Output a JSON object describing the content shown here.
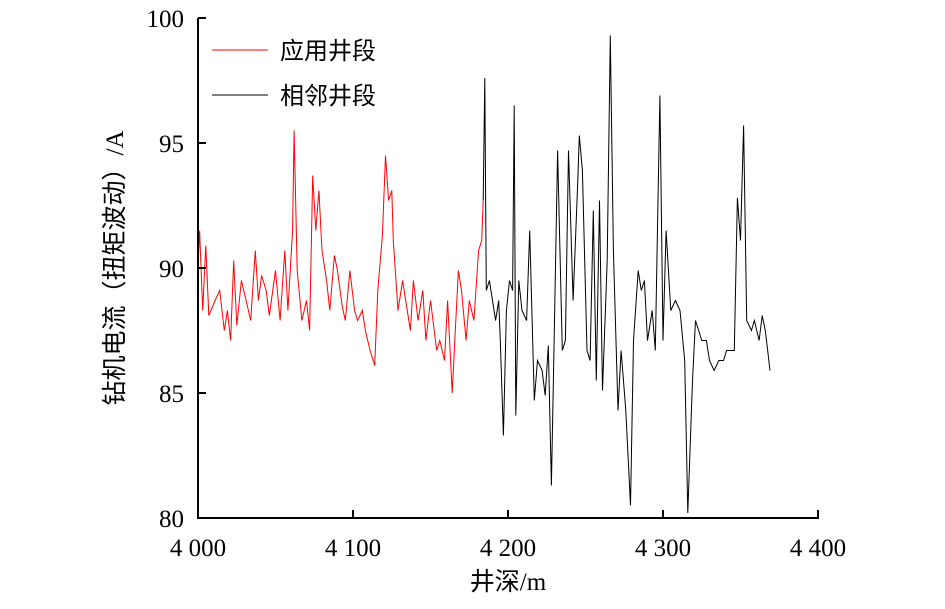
{
  "chart_data": {
    "type": "line",
    "title": "",
    "xlabel": "井深/m",
    "ylabel": "钻机电流（扭矩波动）/A",
    "xlim": [
      4000,
      4400
    ],
    "ylim": [
      80,
      100
    ],
    "xticks": [
      4000,
      4100,
      4200,
      4300,
      4400
    ],
    "xtick_labels": [
      "4 000",
      "4 100",
      "4 200",
      "4 300",
      "4 400"
    ],
    "yticks": [
      80,
      85,
      90,
      95,
      100
    ],
    "ytick_labels": [
      "80",
      "85",
      "90",
      "95",
      "100"
    ],
    "grid": false,
    "legend_position": "top-left",
    "series": [
      {
        "name": "应用井段",
        "color": "#ff0000",
        "x": [
          4000,
          4001,
          4003,
          4005,
          4007,
          4011,
          4014,
          4017,
          4019,
          4021,
          4023,
          4025,
          4028,
          4031,
          4034,
          4037,
          4039,
          4041,
          4044,
          4046,
          4050,
          4053,
          4056,
          4058,
          4061,
          4062,
          4064,
          4067,
          4070,
          4072,
          4074,
          4076,
          4078,
          4080,
          4083,
          4085,
          4088,
          4090,
          4093,
          4095,
          4098,
          4101,
          4103,
          4106,
          4108,
          4111,
          4114,
          4116,
          4119,
          4121,
          4123,
          4125,
          4126,
          4129,
          4132,
          4134,
          4137,
          4139,
          4142,
          4145,
          4147,
          4150,
          4154,
          4156,
          4159,
          4161,
          4164,
          4166,
          4168,
          4170,
          4173,
          4175,
          4178,
          4181,
          4183,
          4184
        ],
        "y": [
          90.0,
          91.5,
          88.3,
          90.9,
          88.1,
          88.7,
          89.1,
          87.5,
          88.3,
          87.1,
          90.3,
          87.7,
          89.5,
          88.7,
          87.9,
          90.7,
          88.7,
          89.7,
          89.1,
          88.1,
          89.9,
          87.9,
          90.7,
          88.3,
          91.5,
          95.5,
          89.9,
          87.9,
          88.7,
          87.5,
          93.7,
          91.5,
          93.1,
          90.7,
          89.5,
          88.3,
          90.5,
          89.9,
          88.5,
          87.9,
          89.9,
          88.3,
          87.9,
          88.3,
          87.5,
          86.7,
          86.1,
          89.1,
          91.3,
          94.5,
          92.7,
          93.1,
          91.1,
          88.3,
          89.5,
          88.7,
          87.5,
          89.5,
          87.9,
          89.1,
          87.1,
          88.7,
          86.7,
          87.1,
          86.3,
          88.7,
          85.0,
          87.5,
          89.9,
          89.1,
          87.1,
          88.7,
          87.9,
          90.7,
          91.1,
          92.7
        ]
      },
      {
        "name": "相邻井段",
        "color": "#000000",
        "x": [
          4184,
          4185,
          4186,
          4188,
          4190,
          4192,
          4194,
          4195,
          4197,
          4199,
          4201,
          4203,
          4204,
          4205,
          4207,
          4209,
          4212,
          4214,
          4217,
          4219,
          4222,
          4224,
          4226,
          4228,
          4230,
          4232,
          4235,
          4237,
          4239,
          4242,
          4245,
          4246,
          4248,
          4251,
          4253,
          4255,
          4257,
          4259,
          4261,
          4264,
          4266,
          4268,
          4271,
          4273,
          4276,
          4279,
          4281,
          4284,
          4286,
          4288,
          4290,
          4293,
          4295,
          4298,
          4300,
          4302,
          4305,
          4308,
          4311,
          4314,
          4316,
          4319,
          4321,
          4325,
          4328,
          4330,
          4333,
          4336,
          4339,
          4341,
          4344,
          4346,
          4348,
          4350,
          4352,
          4354,
          4357,
          4359,
          4362,
          4364,
          4366,
          4369
        ],
        "y": [
          92.7,
          97.6,
          89.1,
          89.5,
          88.7,
          87.9,
          88.7,
          87.1,
          83.3,
          88.3,
          89.5,
          89.1,
          96.5,
          84.1,
          89.5,
          88.3,
          87.9,
          91.5,
          84.7,
          86.3,
          85.9,
          84.9,
          86.9,
          81.3,
          87.9,
          94.7,
          86.7,
          87.1,
          94.7,
          88.7,
          93.5,
          95.3,
          93.9,
          86.7,
          86.3,
          92.3,
          85.5,
          92.7,
          85.1,
          90.3,
          99.3,
          90.7,
          84.3,
          86.7,
          84.3,
          80.5,
          87.1,
          89.9,
          89.1,
          89.5,
          87.1,
          88.3,
          86.7,
          96.9,
          87.1,
          91.5,
          88.3,
          88.7,
          88.3,
          86.3,
          80.2,
          85.5,
          87.9,
          87.1,
          87.1,
          86.3,
          85.9,
          86.3,
          86.3,
          86.7,
          86.7,
          86.7,
          92.8,
          91.1,
          95.7,
          87.9,
          87.5,
          87.9,
          87.1,
          88.1,
          87.5,
          85.9
        ]
      }
    ]
  }
}
